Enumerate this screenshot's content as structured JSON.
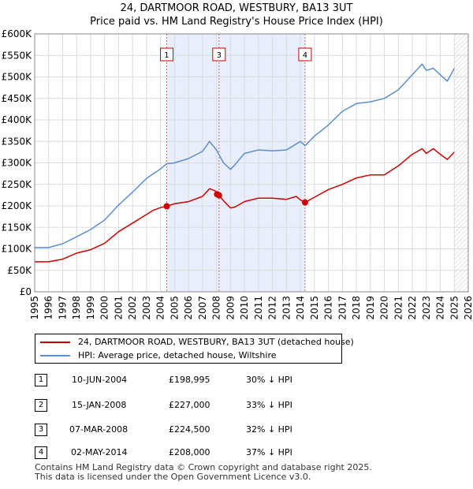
{
  "title_line1": "24, DARTMOOR ROAD, WESTBURY, BA13 3UT",
  "title_line2": "Price paid vs. HM Land Registry's House Price Index (HPI)",
  "chart_data": {
    "type": "line",
    "title": "24, DARTMOOR ROAD, WESTBURY, BA13 3UT",
    "subtitle": "Price paid vs. HM Land Registry's House Price Index (HPI)",
    "xlabel": "",
    "ylabel": "",
    "xlim": [
      1995,
      2026
    ],
    "ylim": [
      0,
      600000
    ],
    "y_ticks": [
      0,
      50000,
      100000,
      150000,
      200000,
      250000,
      300000,
      350000,
      400000,
      450000,
      500000,
      550000,
      600000
    ],
    "y_tick_labels": [
      "£0",
      "£50K",
      "£100K",
      "£150K",
      "£200K",
      "£250K",
      "£300K",
      "£350K",
      "£400K",
      "£450K",
      "£500K",
      "£550K",
      "£600K"
    ],
    "x_ticks": [
      1995,
      1996,
      1997,
      1998,
      1999,
      2000,
      2001,
      2002,
      2003,
      2004,
      2005,
      2006,
      2007,
      2008,
      2009,
      2010,
      2011,
      2012,
      2013,
      2014,
      2015,
      2016,
      2017,
      2018,
      2019,
      2020,
      2021,
      2022,
      2023,
      2024,
      2025,
      2026
    ],
    "x_tick_labels": [
      "1995",
      "1996",
      "1997",
      "1998",
      "1999",
      "2000",
      "2001",
      "2002",
      "2003",
      "2004",
      "2005",
      "2006",
      "2007",
      "2008",
      "2009",
      "2010",
      "2011",
      "2012",
      "2013",
      "2014",
      "2015",
      "2016",
      "2017",
      "2018",
      "2019",
      "2020",
      "2021",
      "2022",
      "2023",
      "2024",
      "2025",
      "2026"
    ],
    "grid": true,
    "legend_position": "below",
    "shaded_range": [
      2004.44,
      2014.33
    ],
    "forecast_from": 2025.0,
    "series": [
      {
        "name": "24, DARTMOOR ROAD, WESTBURY, BA13 3UT (detached house)",
        "color": "#cc0000",
        "x": [
          1995.0,
          1996.0,
          1997.0,
          1998.0,
          1999.0,
          2000.0,
          2001.0,
          2002.0,
          2003.0,
          2003.5,
          2004.0,
          2004.44,
          2005.0,
          2006.0,
          2007.0,
          2007.5,
          2007.9,
          2008.04,
          2008.18,
          2008.5,
          2009.0,
          2009.3,
          2010.0,
          2011.0,
          2012.0,
          2013.0,
          2013.7,
          2014.0,
          2014.33,
          2015.0,
          2016.0,
          2017.0,
          2018.0,
          2019.0,
          2020.0,
          2021.0,
          2022.0,
          2022.7,
          2023.0,
          2023.5,
          2024.0,
          2024.5,
          2025.0
        ],
        "values": [
          70000,
          70000,
          76000,
          90000,
          98000,
          113000,
          140000,
          160000,
          180000,
          190000,
          196000,
          198995,
          205000,
          210000,
          222000,
          240000,
          235000,
          227000,
          224500,
          212000,
          195000,
          197000,
          210000,
          218000,
          218000,
          215000,
          222000,
          214000,
          208000,
          220000,
          238000,
          250000,
          265000,
          272000,
          272000,
          293000,
          320000,
          333000,
          322000,
          333000,
          320000,
          308000,
          325000
        ]
      },
      {
        "name": "HPI: Average price, detached house, Wiltshire",
        "color": "#5b8fd0",
        "x": [
          1995.0,
          1996.0,
          1997.0,
          1998.0,
          1999.0,
          2000.0,
          2001.0,
          2002.0,
          2003.0,
          2004.0,
          2004.44,
          2005.0,
          2006.0,
          2007.0,
          2007.5,
          2008.0,
          2008.5,
          2009.0,
          2009.3,
          2010.0,
          2011.0,
          2012.0,
          2013.0,
          2014.0,
          2014.33,
          2015.0,
          2016.0,
          2017.0,
          2018.0,
          2019.0,
          2020.0,
          2021.0,
          2022.0,
          2022.7,
          2023.0,
          2023.5,
          2024.0,
          2024.5,
          2025.0
        ],
        "values": [
          103000,
          103000,
          112000,
          128000,
          145000,
          167000,
          202000,
          232000,
          264000,
          286000,
          298000,
          300000,
          310000,
          327000,
          350000,
          330000,
          300000,
          285000,
          295000,
          322000,
          330000,
          328000,
          330000,
          350000,
          340000,
          362000,
          388000,
          420000,
          438000,
          442000,
          450000,
          470000,
          505000,
          530000,
          515000,
          520000,
          505000,
          490000,
          520000
        ]
      }
    ],
    "annotations": [
      {
        "label": "1",
        "x": 2004.44
      },
      {
        "label": "3",
        "x": 2008.18
      },
      {
        "label": "4",
        "x": 2014.33
      }
    ],
    "sale_points": [
      {
        "x": 2004.44,
        "value": 198995
      },
      {
        "x": 2008.04,
        "value": 227000
      },
      {
        "x": 2008.18,
        "value": 224500
      },
      {
        "x": 2014.33,
        "value": 208000
      }
    ]
  },
  "legend": {
    "property": "24, DARTMOOR ROAD, WESTBURY, BA13 3UT (detached house)",
    "hpi": "HPI: Average price, detached house, Wiltshire",
    "property_color": "#cc0000",
    "hpi_color": "#5b8fd0"
  },
  "sales": [
    {
      "num": "1",
      "date": "10-JUN-2004",
      "price": "£198,995",
      "hpi": "30% ↓ HPI"
    },
    {
      "num": "2",
      "date": "15-JAN-2008",
      "price": "£227,000",
      "hpi": "33% ↓ HPI"
    },
    {
      "num": "3",
      "date": "07-MAR-2008",
      "price": "£224,500",
      "hpi": "32% ↓ HPI"
    },
    {
      "num": "4",
      "date": "02-MAY-2014",
      "price": "£208,000",
      "hpi": "37% ↓ HPI"
    }
  ],
  "footer": {
    "line1": "Contains HM Land Registry data © Crown copyright and database right 2025.",
    "line2": "This data is licensed under the Open Government Licence v3.0."
  }
}
